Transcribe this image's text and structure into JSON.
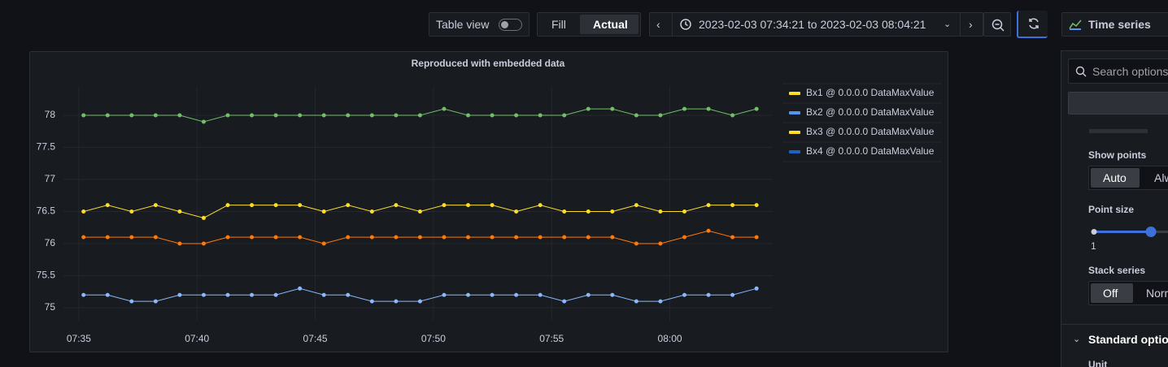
{
  "toolbar": {
    "table_view": "Table view",
    "fill": "Fill",
    "actual": "Actual",
    "time_range": "2023-02-03 07:34:21 to 2023-02-03 08:04:21",
    "visualization": "Time series"
  },
  "chart_data": {
    "type": "line",
    "title": "Reproduced with embedded data",
    "x": [
      "07:35:12",
      "07:36:13",
      "07:37:14",
      "07:38:15",
      "07:39:16",
      "07:40:17",
      "07:41:18",
      "07:42:19",
      "07:43:20",
      "07:44:21",
      "07:45:22",
      "07:46:23",
      "07:47:24",
      "07:48:25",
      "07:49:26",
      "07:50:27",
      "07:51:28",
      "07:52:29",
      "07:53:30",
      "07:54:31",
      "07:55:32",
      "07:56:33",
      "07:57:34",
      "07:58:35",
      "07:59:36",
      "08:00:37",
      "08:01:38",
      "08:02:39",
      "08:03:40"
    ],
    "series": [
      {
        "name": "Bx1 @ 0.0.0.0 DataMaxValue",
        "color": "#73bf69",
        "legend_color": "#fade2a",
        "values": [
          78,
          78,
          78,
          78,
          78,
          77.9,
          78,
          78,
          78,
          78,
          78,
          78,
          78,
          78,
          78,
          78.1,
          78,
          78,
          78,
          78,
          78,
          78.1,
          78.1,
          78,
          78,
          78.1,
          78.1,
          78,
          78.1
        ]
      },
      {
        "name": "Bx2 @ 0.0.0.0 DataMaxValue",
        "color": "#fade2a",
        "legend_color": "#5794f2",
        "values": [
          76.5,
          76.6,
          76.5,
          76.6,
          76.5,
          76.4,
          76.6,
          76.6,
          76.6,
          76.6,
          76.5,
          76.6,
          76.5,
          76.6,
          76.5,
          76.6,
          76.6,
          76.6,
          76.5,
          76.6,
          76.5,
          76.5,
          76.5,
          76.6,
          76.5,
          76.5,
          76.6,
          76.6,
          76.6
        ]
      },
      {
        "name": "Bx3 @ 0.0.0.0 DataMaxValue",
        "color": "#ff780a",
        "legend_color": "#fade2a",
        "values": [
          76.1,
          76.1,
          76.1,
          76.1,
          76,
          76,
          76.1,
          76.1,
          76.1,
          76.1,
          76,
          76.1,
          76.1,
          76.1,
          76.1,
          76.1,
          76.1,
          76.1,
          76.1,
          76.1,
          76.1,
          76.1,
          76.1,
          76,
          76,
          76.1,
          76.2,
          76.1,
          76.1
        ]
      },
      {
        "name": "Bx4 @ 0.0.0.0 DataMaxValue",
        "color": "#8ab8ff",
        "legend_color": "#1f60c4",
        "values": [
          75.2,
          75.2,
          75.1,
          75.1,
          75.2,
          75.2,
          75.2,
          75.2,
          75.2,
          75.3,
          75.2,
          75.2,
          75.1,
          75.1,
          75.1,
          75.2,
          75.2,
          75.2,
          75.2,
          75.2,
          75.1,
          75.2,
          75.2,
          75.1,
          75.1,
          75.2,
          75.2,
          75.2,
          75.3
        ]
      }
    ],
    "xlim": [
      "07:34:21",
      "08:04:21"
    ],
    "xticks": [
      "07:35",
      "07:40",
      "07:45",
      "07:50",
      "07:55",
      "08:00"
    ],
    "ylim": [
      74.8,
      78.45
    ],
    "yticks": [
      75,
      75.5,
      76,
      76.5,
      77,
      77.5,
      78
    ],
    "grid": true,
    "legend": "right"
  },
  "options": {
    "search": "Search options",
    "show_points": {
      "label": "Show points",
      "choices": [
        "Auto",
        "Always"
      ]
    },
    "point_size": {
      "label": "Point size",
      "min": "1"
    },
    "stack_series": {
      "label": "Stack series",
      "choices": [
        "Off",
        "Normal"
      ]
    },
    "standard_options": "Standard options",
    "unit": "Unit"
  }
}
